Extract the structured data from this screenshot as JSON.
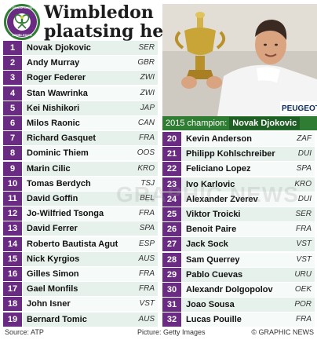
{
  "title": {
    "line1": "Wimbledon",
    "line2": "plaatsing heren"
  },
  "logo": {
    "icon": "wimbledon-logo-icon",
    "ring_text": "THE CHAMPIONSHIPS",
    "bottom_text": "WIMBLEDON"
  },
  "photo": {
    "icon": "champion-photo",
    "banner_text": "PEUGEOT"
  },
  "champion": {
    "label": "2015 champion:",
    "name": "Novak Djokovic"
  },
  "watermark": "GRAPHIC NEWS",
  "colors": {
    "purple": "#6a2c83",
    "green": "#2e7d32",
    "row_bg": "#e7f1ec"
  },
  "seeds": [
    {
      "seed": "1",
      "name": "Novak Djokovic",
      "country": "SER"
    },
    {
      "seed": "2",
      "name": "Andy Murray",
      "country": "GBR"
    },
    {
      "seed": "3",
      "name": "Roger Federer",
      "country": "ZWI"
    },
    {
      "seed": "4",
      "name": "Stan Wawrinka",
      "country": "ZWI"
    },
    {
      "seed": "5",
      "name": "Kei Nishikori",
      "country": "JAP"
    },
    {
      "seed": "6",
      "name": "Milos Raonic",
      "country": "CAN"
    },
    {
      "seed": "7",
      "name": "Richard Gasquet",
      "country": "FRA"
    },
    {
      "seed": "8",
      "name": "Dominic Thiem",
      "country": "OOS"
    },
    {
      "seed": "9",
      "name": "Marin Cilic",
      "country": "KRO"
    },
    {
      "seed": "10",
      "name": "Tomas Berdych",
      "country": "TSJ"
    },
    {
      "seed": "11",
      "name": "David Goffin",
      "country": "BEL"
    },
    {
      "seed": "12",
      "name": "Jo-Wilfried Tsonga",
      "country": "FRA"
    },
    {
      "seed": "13",
      "name": "David Ferrer",
      "country": "SPA"
    },
    {
      "seed": "14",
      "name": "Roberto Bautista Agut",
      "country": "ESP"
    },
    {
      "seed": "15",
      "name": "Nick Kyrgios",
      "country": "AUS"
    },
    {
      "seed": "16",
      "name": "Gilles Simon",
      "country": "FRA"
    },
    {
      "seed": "17",
      "name": "Gael Monfils",
      "country": "FRA"
    },
    {
      "seed": "18",
      "name": "John Isner",
      "country": "VST"
    },
    {
      "seed": "19",
      "name": "Bernard Tomic",
      "country": "AUS"
    },
    {
      "seed": "20",
      "name": "Kevin Anderson",
      "country": "ZAF"
    },
    {
      "seed": "21",
      "name": "Philipp Kohlschreiber",
      "country": "DUI"
    },
    {
      "seed": "22",
      "name": "Feliciano Lopez",
      "country": "SPA"
    },
    {
      "seed": "23",
      "name": "Ivo Karlovic",
      "country": "KRO"
    },
    {
      "seed": "24",
      "name": "Alexander Zverev",
      "country": "DUI"
    },
    {
      "seed": "25",
      "name": "Viktor Troicki",
      "country": "SER"
    },
    {
      "seed": "26",
      "name": "Benoit Paire",
      "country": "FRA"
    },
    {
      "seed": "27",
      "name": "Jack Sock",
      "country": "VST"
    },
    {
      "seed": "28",
      "name": "Sam Querrey",
      "country": "VST"
    },
    {
      "seed": "29",
      "name": "Pablo Cuevas",
      "country": "URU"
    },
    {
      "seed": "30",
      "name": "Alexandr Dolgopolov",
      "country": "OEK"
    },
    {
      "seed": "31",
      "name": "Joao Sousa",
      "country": "POR"
    },
    {
      "seed": "32",
      "name": "Lucas Pouille",
      "country": "FRA"
    }
  ],
  "footer": {
    "source": "Source: ATP",
    "picture": "Picture: Getty Images",
    "copyright": "© GRAPHIC NEWS"
  }
}
